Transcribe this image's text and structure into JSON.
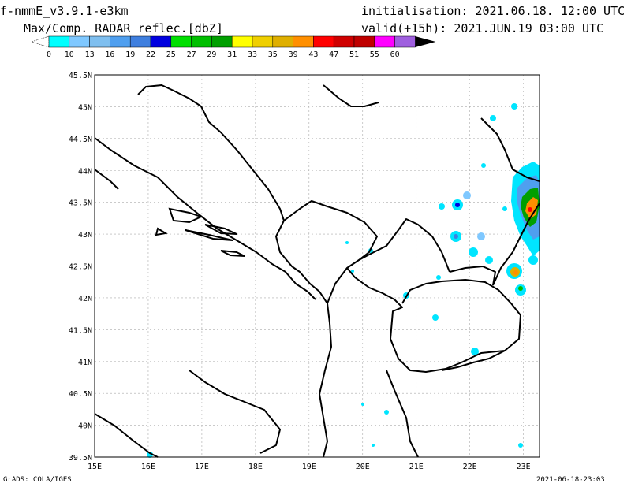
{
  "header": {
    "model": "f-nmmE_v3.9.1-e3km",
    "product": "Max/Comp. RADAR reflec.[dbZ]",
    "init": "initialisation: 2021.06.18. 12:00 UTC",
    "valid": "valid(+15h): 2021.JUN.19 03:00 UTC"
  },
  "colorbar": {
    "labels": [
      "0",
      "10",
      "13",
      "16",
      "19",
      "22",
      "25",
      "27",
      "29",
      "31",
      "33",
      "35",
      "39",
      "43",
      "47",
      "51",
      "55",
      "60"
    ],
    "colors": [
      "#00ffff",
      "#7fc8ff",
      "#7fbfef",
      "#4f9fef",
      "#3f7fdf",
      "#0000df",
      "#00df00",
      "#00bf00",
      "#009f00",
      "#ffff00",
      "#efcf00",
      "#dfaf00",
      "#ff8f00",
      "#ff0000",
      "#cf0000",
      "#bf0000",
      "#ff00ff",
      "#9f5fdf"
    ]
  },
  "map": {
    "lat_labels": [
      "45.5N",
      "45N",
      "44.5N",
      "44N",
      "43.5N",
      "43N",
      "42.5N",
      "42N",
      "41.5N",
      "41N",
      "40.5N",
      "40N",
      "39.5N"
    ],
    "lon_labels": [
      "15E",
      "16E",
      "17E",
      "18E",
      "19E",
      "20E",
      "21E",
      "22E",
      "23E"
    ],
    "lon_range": [
      15,
      23.3
    ],
    "lat_range": [
      39.5,
      45.5
    ]
  },
  "footer": {
    "left": "GrADS: COLA/IGES",
    "right": "2021-06-18-23:03"
  }
}
